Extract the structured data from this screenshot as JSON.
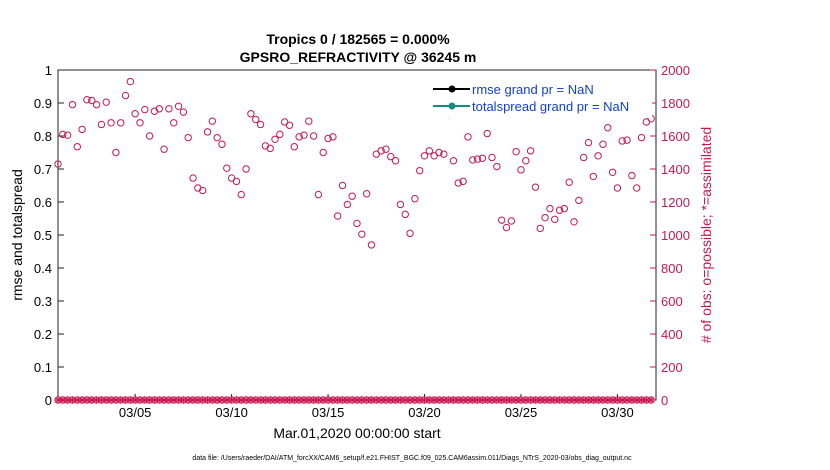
{
  "chart_data": {
    "type": "scatter",
    "title": "Tropics 0 / 182565 = 0.000%",
    "subtitle": "GPSRO_REFRACTIVITY @ 36245 m",
    "xlabel": "Mar.01,2020 00:00:00 start",
    "ylabel": "rmse and totalspread",
    "y2label": "# of obs: o=possible; *=assimilated",
    "footer": "data file: /Users/raeder/DAI/ATM_forcXX/CAM6_setup/f.e21.FHIST_BGC.f09_025.CAM6assim.011/Diags_NTrS_2020-03/obs_diag_output.nc",
    "xlim": [
      "2020-03-01",
      "2020-03-32"
    ],
    "ylim": [
      0,
      1
    ],
    "y2lim": [
      0,
      2000
    ],
    "x_ticks": [
      {
        "x": "2020-03-05",
        "label": "03/05"
      },
      {
        "x": "2020-03-10",
        "label": "03/10"
      },
      {
        "x": "2020-03-15",
        "label": "03/15"
      },
      {
        "x": "2020-03-20",
        "label": "03/20"
      },
      {
        "x": "2020-03-25",
        "label": "03/25"
      },
      {
        "x": "2020-03-30",
        "label": "03/30"
      }
    ],
    "y_ticks": [
      "0",
      "0.1",
      "0.2",
      "0.3",
      "0.4",
      "0.5",
      "0.6",
      "0.7",
      "0.8",
      "0.9",
      "1"
    ],
    "y2_ticks": [
      "0",
      "200",
      "400",
      "600",
      "800",
      "1000",
      "1200",
      "1400",
      "1600",
      "1800",
      "2000"
    ],
    "legend": {
      "placement": "top-right",
      "entries": [
        {
          "label": "rmse grand pr = NaN",
          "color": "#000000"
        },
        {
          "label": "totalspread grand pr = NaN",
          "color": "#1a8a80"
        }
      ]
    },
    "colors": {
      "obs": "#c8174f",
      "rmse": "#000000",
      "totalspread": "#1a8a80",
      "legend_text": "#1240d0"
    },
    "grid": false,
    "series": [
      {
        "name": "o=possible",
        "axis": "right",
        "x": [
          "2020-03-01 00:00",
          "2020-03-01 06:00",
          "2020-03-01 12:00",
          "2020-03-01 18:00",
          "2020-03-02 00:00",
          "2020-03-02 06:00",
          "2020-03-02 12:00",
          "2020-03-02 18:00",
          "2020-03-03 00:00",
          "2020-03-03 06:00",
          "2020-03-03 12:00",
          "2020-03-03 18:00",
          "2020-03-04 00:00",
          "2020-03-04 06:00",
          "2020-03-04 12:00",
          "2020-03-04 18:00",
          "2020-03-05 00:00",
          "2020-03-05 06:00",
          "2020-03-05 12:00",
          "2020-03-05 18:00",
          "2020-03-06 00:00",
          "2020-03-06 06:00",
          "2020-03-06 12:00",
          "2020-03-06 18:00",
          "2020-03-07 00:00",
          "2020-03-07 06:00",
          "2020-03-07 12:00",
          "2020-03-07 18:00",
          "2020-03-08 00:00",
          "2020-03-08 06:00",
          "2020-03-08 12:00",
          "2020-03-08 18:00",
          "2020-03-09 00:00",
          "2020-03-09 06:00",
          "2020-03-09 12:00",
          "2020-03-09 18:00",
          "2020-03-10 00:00",
          "2020-03-10 06:00",
          "2020-03-10 12:00",
          "2020-03-10 18:00",
          "2020-03-11 00:00",
          "2020-03-11 06:00",
          "2020-03-11 12:00",
          "2020-03-11 18:00",
          "2020-03-12 00:00",
          "2020-03-12 06:00",
          "2020-03-12 12:00",
          "2020-03-12 18:00",
          "2020-03-13 00:00",
          "2020-03-13 06:00",
          "2020-03-13 12:00",
          "2020-03-13 18:00",
          "2020-03-14 00:00",
          "2020-03-14 06:00",
          "2020-03-14 12:00",
          "2020-03-14 18:00",
          "2020-03-15 00:00",
          "2020-03-15 06:00",
          "2020-03-15 12:00",
          "2020-03-15 18:00",
          "2020-03-16 00:00",
          "2020-03-16 06:00",
          "2020-03-16 12:00",
          "2020-03-16 18:00",
          "2020-03-17 00:00",
          "2020-03-17 06:00",
          "2020-03-17 12:00",
          "2020-03-17 18:00",
          "2020-03-18 00:00",
          "2020-03-18 06:00",
          "2020-03-18 12:00",
          "2020-03-18 18:00",
          "2020-03-19 00:00",
          "2020-03-19 06:00",
          "2020-03-19 12:00",
          "2020-03-19 18:00",
          "2020-03-20 00:00",
          "2020-03-20 06:00",
          "2020-03-20 12:00",
          "2020-03-20 18:00",
          "2020-03-21 00:00",
          "2020-03-21 06:00",
          "2020-03-21 12:00",
          "2020-03-21 18:00",
          "2020-03-22 00:00",
          "2020-03-22 06:00",
          "2020-03-22 12:00",
          "2020-03-22 18:00",
          "2020-03-23 00:00",
          "2020-03-23 06:00",
          "2020-03-23 12:00",
          "2020-03-23 18:00",
          "2020-03-24 00:00",
          "2020-03-24 06:00",
          "2020-03-24 12:00",
          "2020-03-24 18:00",
          "2020-03-25 00:00",
          "2020-03-25 06:00",
          "2020-03-25 12:00",
          "2020-03-25 18:00",
          "2020-03-26 00:00",
          "2020-03-26 06:00",
          "2020-03-26 12:00",
          "2020-03-26 18:00",
          "2020-03-27 00:00",
          "2020-03-27 06:00",
          "2020-03-27 12:00",
          "2020-03-27 18:00",
          "2020-03-28 00:00",
          "2020-03-28 06:00",
          "2020-03-28 12:00",
          "2020-03-28 18:00",
          "2020-03-29 00:00",
          "2020-03-29 06:00",
          "2020-03-29 12:00",
          "2020-03-29 18:00",
          "2020-03-30 00:00",
          "2020-03-30 06:00",
          "2020-03-30 12:00",
          "2020-03-30 18:00",
          "2020-03-31 00:00",
          "2020-03-31 06:00",
          "2020-03-31 12:00",
          "2020-03-31 18:00"
        ],
        "values": [
          1430,
          1610,
          1605,
          1790,
          1535,
          1640,
          1820,
          1815,
          1790,
          1670,
          1805,
          1680,
          1500,
          1680,
          1845,
          1930,
          1735,
          1680,
          1760,
          1600,
          1750,
          1765,
          1520,
          1765,
          1680,
          1780,
          1745,
          1590,
          1345,
          1285,
          1270,
          1625,
          1690,
          1590,
          1550,
          1405,
          1345,
          1325,
          1245,
          1400,
          1735,
          1700,
          1670,
          1540,
          1525,
          1580,
          1610,
          1685,
          1665,
          1535,
          1595,
          1605,
          1690,
          1600,
          1245,
          1500,
          1585,
          1595,
          1115,
          1300,
          1185,
          1235,
          1070,
          1005,
          1250,
          940,
          1490,
          1510,
          1520,
          1475,
          1450,
          1185,
          1125,
          1010,
          1220,
          1390,
          1480,
          1510,
          1480,
          1500,
          1490,
          1730,
          1450,
          1315,
          1325,
          1595,
          1455,
          1460,
          1465,
          1615,
          1470,
          1415,
          1090,
          1045,
          1085,
          1505,
          1395,
          1450,
          1510,
          1290,
          1040,
          1105,
          1160,
          1095,
          1150,
          1160,
          1320,
          1080,
          1210,
          1470,
          1560,
          1355,
          1480,
          1550,
          1650,
          1380,
          1285,
          1570,
          1575,
          1360,
          1285,
          1590,
          1685,
          1705
        ]
      },
      {
        "name": "*=assimilated",
        "axis": "right",
        "values_note_free": true,
        "count_per_day": 4,
        "value": 0
      }
    ]
  }
}
